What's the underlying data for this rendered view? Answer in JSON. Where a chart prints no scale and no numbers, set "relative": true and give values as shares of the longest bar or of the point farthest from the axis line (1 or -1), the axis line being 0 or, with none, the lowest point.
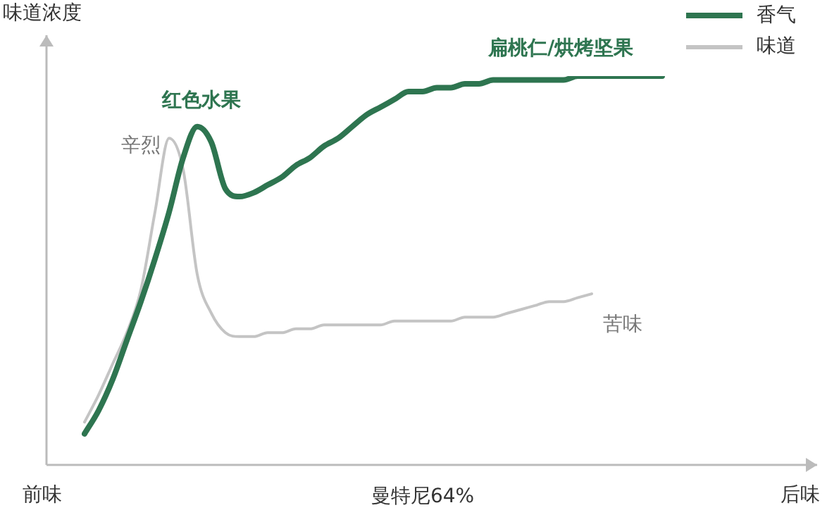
{
  "chart_data": {
    "type": "line",
    "relative": true,
    "ylabel": "味道浓度",
    "xlabel": "曼特尼64%",
    "legend": "top right",
    "grid": false,
    "marker": "none",
    "line_style": "solid",
    "categories": [
      null,
      null,
      null,
      null,
      null,
      null,
      null,
      null,
      null,
      null,
      null,
      null,
      null,
      null,
      null,
      null,
      null,
      null,
      null,
      null,
      null,
      null,
      null,
      null,
      null,
      null,
      null,
      null,
      null,
      null,
      null,
      null,
      null,
      null,
      null,
      null,
      null,
      null,
      null,
      null,
      null,
      null
    ],
    "series": [
      {
        "name": "香气",
        "color": "#2e7550",
        "values": [
          0.08,
          0.14,
          0.22,
          0.32,
          0.42,
          0.53,
          0.65,
          0.79,
          0.87,
          0.83,
          0.71,
          0.69,
          0.7,
          0.72,
          0.74,
          0.77,
          0.79,
          0.82,
          0.84,
          0.87,
          0.9,
          0.92,
          0.94,
          0.96,
          0.96,
          0.97,
          0.97,
          0.98,
          0.98,
          0.99,
          0.99,
          0.99,
          0.99,
          0.99,
          0.99,
          1,
          1,
          1,
          1,
          1,
          1,
          1
        ]
      },
      {
        "name": "味道",
        "color": "#c4c4c4",
        "values": [
          0.11,
          0.18,
          0.26,
          0.34,
          0.45,
          0.65,
          0.84,
          0.76,
          0.49,
          0.39,
          0.34,
          0.33,
          0.33,
          0.34,
          0.34,
          0.35,
          0.35,
          0.36,
          0.36,
          0.36,
          0.36,
          0.36,
          0.37,
          0.37,
          0.37,
          0.37,
          0.37,
          0.38,
          0.38,
          0.38,
          0.39,
          0.4,
          0.41,
          0.42,
          0.42,
          0.43,
          0.44,
          null,
          null,
          null,
          null,
          null
        ]
      }
    ],
    "annotations": [
      "辛烈",
      "红色水果",
      "扁桃仁/烘烤坚果",
      "苦味",
      "前味",
      "后味"
    ]
  }
}
